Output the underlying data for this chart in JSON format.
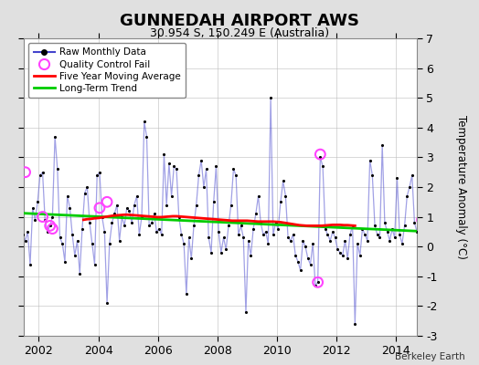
{
  "title": "GUNNEDAH AIRPORT AWS",
  "subtitle": "30.954 S, 150.249 E (Australia)",
  "ylabel": "Temperature Anomaly (°C)",
  "credit": "Berkeley Earth",
  "ylim": [
    -3,
    7
  ],
  "yticks": [
    -3,
    -2,
    -1,
    0,
    1,
    2,
    3,
    4,
    5,
    6,
    7
  ],
  "xlim": [
    2001.5,
    2014.7
  ],
  "xticks": [
    2002,
    2004,
    2006,
    2008,
    2010,
    2012,
    2014
  ],
  "background_color": "#e0e0e0",
  "plot_bg_color": "#ffffff",
  "raw_color": "#4444cc",
  "raw_line_alpha": 0.5,
  "marker_color": "#000000",
  "ma_color": "#ff0000",
  "trend_color": "#00cc00",
  "qc_fail_color": "#ff44ff",
  "raw_monthly": [
    [
      2001.042,
      1.3
    ],
    [
      2001.125,
      1.6
    ],
    [
      2001.208,
      0.8
    ],
    [
      2001.292,
      0.5
    ],
    [
      2001.375,
      -0.1
    ],
    [
      2001.458,
      0.4
    ],
    [
      2001.542,
      0.2
    ],
    [
      2001.625,
      0.5
    ],
    [
      2001.708,
      -0.6
    ],
    [
      2001.792,
      1.3
    ],
    [
      2001.875,
      0.9
    ],
    [
      2001.958,
      1.5
    ],
    [
      2002.042,
      2.4
    ],
    [
      2002.125,
      2.5
    ],
    [
      2002.208,
      0.9
    ],
    [
      2002.292,
      0.5
    ],
    [
      2002.375,
      0.7
    ],
    [
      2002.458,
      1.0
    ],
    [
      2002.542,
      3.7
    ],
    [
      2002.625,
      2.6
    ],
    [
      2002.708,
      0.3
    ],
    [
      2002.792,
      0.1
    ],
    [
      2002.875,
      -0.5
    ],
    [
      2002.958,
      1.7
    ],
    [
      2003.042,
      1.3
    ],
    [
      2003.125,
      0.4
    ],
    [
      2003.208,
      -0.3
    ],
    [
      2003.292,
      0.2
    ],
    [
      2003.375,
      -0.9
    ],
    [
      2003.458,
      0.6
    ],
    [
      2003.542,
      1.8
    ],
    [
      2003.625,
      2.0
    ],
    [
      2003.708,
      0.8
    ],
    [
      2003.792,
      0.1
    ],
    [
      2003.875,
      -0.6
    ],
    [
      2003.958,
      2.4
    ],
    [
      2004.042,
      2.5
    ],
    [
      2004.125,
      1.0
    ],
    [
      2004.208,
      0.5
    ],
    [
      2004.292,
      -1.9
    ],
    [
      2004.375,
      0.1
    ],
    [
      2004.458,
      0.8
    ],
    [
      2004.542,
      1.1
    ],
    [
      2004.625,
      1.4
    ],
    [
      2004.708,
      0.2
    ],
    [
      2004.792,
      1.0
    ],
    [
      2004.875,
      0.7
    ],
    [
      2004.958,
      1.3
    ],
    [
      2005.042,
      1.2
    ],
    [
      2005.125,
      0.8
    ],
    [
      2005.208,
      1.4
    ],
    [
      2005.292,
      1.7
    ],
    [
      2005.375,
      0.4
    ],
    [
      2005.458,
      1.0
    ],
    [
      2005.542,
      4.2
    ],
    [
      2005.625,
      3.7
    ],
    [
      2005.708,
      0.7
    ],
    [
      2005.792,
      0.8
    ],
    [
      2005.875,
      1.1
    ],
    [
      2005.958,
      0.5
    ],
    [
      2006.042,
      0.6
    ],
    [
      2006.125,
      0.4
    ],
    [
      2006.208,
      3.1
    ],
    [
      2006.292,
      1.4
    ],
    [
      2006.375,
      2.8
    ],
    [
      2006.458,
      1.7
    ],
    [
      2006.542,
      2.7
    ],
    [
      2006.625,
      2.6
    ],
    [
      2006.708,
      1.0
    ],
    [
      2006.792,
      0.4
    ],
    [
      2006.875,
      0.1
    ],
    [
      2006.958,
      -1.6
    ],
    [
      2007.042,
      0.3
    ],
    [
      2007.125,
      -0.4
    ],
    [
      2007.208,
      0.7
    ],
    [
      2007.292,
      1.4
    ],
    [
      2007.375,
      2.4
    ],
    [
      2007.458,
      2.9
    ],
    [
      2007.542,
      2.0
    ],
    [
      2007.625,
      2.6
    ],
    [
      2007.708,
      0.3
    ],
    [
      2007.792,
      -0.2
    ],
    [
      2007.875,
      1.5
    ],
    [
      2007.958,
      2.7
    ],
    [
      2008.042,
      0.5
    ],
    [
      2008.125,
      -0.2
    ],
    [
      2008.208,
      0.3
    ],
    [
      2008.292,
      -0.1
    ],
    [
      2008.375,
      0.7
    ],
    [
      2008.458,
      1.4
    ],
    [
      2008.542,
      2.6
    ],
    [
      2008.625,
      2.4
    ],
    [
      2008.708,
      0.4
    ],
    [
      2008.792,
      0.7
    ],
    [
      2008.875,
      0.3
    ],
    [
      2008.958,
      -2.2
    ],
    [
      2009.042,
      0.2
    ],
    [
      2009.125,
      -0.3
    ],
    [
      2009.208,
      0.6
    ],
    [
      2009.292,
      1.1
    ],
    [
      2009.375,
      1.7
    ],
    [
      2009.458,
      0.8
    ],
    [
      2009.542,
      0.4
    ],
    [
      2009.625,
      0.5
    ],
    [
      2009.708,
      0.1
    ],
    [
      2009.792,
      5.0
    ],
    [
      2009.875,
      0.4
    ],
    [
      2009.958,
      0.8
    ],
    [
      2010.042,
      0.6
    ],
    [
      2010.125,
      1.5
    ],
    [
      2010.208,
      2.2
    ],
    [
      2010.292,
      1.7
    ],
    [
      2010.375,
      0.3
    ],
    [
      2010.458,
      0.2
    ],
    [
      2010.542,
      0.4
    ],
    [
      2010.625,
      -0.3
    ],
    [
      2010.708,
      -0.5
    ],
    [
      2010.792,
      -0.8
    ],
    [
      2010.875,
      0.2
    ],
    [
      2010.958,
      0.0
    ],
    [
      2011.042,
      -0.4
    ],
    [
      2011.125,
      -0.6
    ],
    [
      2011.208,
      0.1
    ],
    [
      2011.292,
      -1.3
    ],
    [
      2011.375,
      -1.2
    ],
    [
      2011.458,
      3.0
    ],
    [
      2011.542,
      2.7
    ],
    [
      2011.625,
      0.6
    ],
    [
      2011.708,
      0.4
    ],
    [
      2011.792,
      0.2
    ],
    [
      2011.875,
      0.5
    ],
    [
      2011.958,
      0.3
    ],
    [
      2012.042,
      -0.1
    ],
    [
      2012.125,
      -0.2
    ],
    [
      2012.208,
      -0.3
    ],
    [
      2012.292,
      0.2
    ],
    [
      2012.375,
      -0.4
    ],
    [
      2012.458,
      0.4
    ],
    [
      2012.542,
      0.7
    ],
    [
      2012.625,
      -2.6
    ],
    [
      2012.708,
      0.1
    ],
    [
      2012.792,
      -0.3
    ],
    [
      2012.875,
      0.6
    ],
    [
      2012.958,
      0.4
    ],
    [
      2013.042,
      0.2
    ],
    [
      2013.125,
      2.9
    ],
    [
      2013.208,
      2.4
    ],
    [
      2013.292,
      0.7
    ],
    [
      2013.375,
      0.4
    ],
    [
      2013.458,
      0.3
    ],
    [
      2013.542,
      3.4
    ],
    [
      2013.625,
      0.8
    ],
    [
      2013.708,
      0.5
    ],
    [
      2013.792,
      0.2
    ],
    [
      2013.875,
      0.6
    ],
    [
      2013.958,
      0.3
    ],
    [
      2014.042,
      2.3
    ],
    [
      2014.125,
      0.4
    ],
    [
      2014.208,
      0.1
    ],
    [
      2014.292,
      0.7
    ],
    [
      2014.375,
      1.7
    ],
    [
      2014.458,
      2.0
    ],
    [
      2014.542,
      2.4
    ],
    [
      2014.625,
      0.8
    ],
    [
      2014.708,
      0.5
    ],
    [
      2014.792,
      1.1
    ],
    [
      2014.875,
      0.9
    ],
    [
      2014.958,
      0.7
    ]
  ],
  "qc_fail_points": [
    [
      2001.542,
      2.5
    ],
    [
      2002.125,
      1.0
    ],
    [
      2002.375,
      0.7
    ],
    [
      2002.458,
      0.6
    ],
    [
      2004.042,
      1.3
    ],
    [
      2004.292,
      1.5
    ],
    [
      2011.458,
      3.1
    ],
    [
      2011.375,
      -1.2
    ],
    [
      2014.875,
      0.9
    ]
  ],
  "moving_avg": [
    [
      2003.5,
      0.9
    ],
    [
      2003.625,
      0.92
    ],
    [
      2003.75,
      0.93
    ],
    [
      2003.875,
      0.95
    ],
    [
      2004.0,
      0.96
    ],
    [
      2004.125,
      0.98
    ],
    [
      2004.25,
      1.0
    ],
    [
      2004.375,
      1.02
    ],
    [
      2004.5,
      1.04
    ],
    [
      2004.625,
      1.05
    ],
    [
      2004.75,
      1.06
    ],
    [
      2004.875,
      1.07
    ],
    [
      2005.0,
      1.07
    ],
    [
      2005.125,
      1.06
    ],
    [
      2005.25,
      1.05
    ],
    [
      2005.375,
      1.04
    ],
    [
      2005.5,
      1.03
    ],
    [
      2005.625,
      1.02
    ],
    [
      2005.75,
      1.01
    ],
    [
      2005.875,
      1.0
    ],
    [
      2006.0,
      0.99
    ],
    [
      2006.125,
      0.99
    ],
    [
      2006.25,
      1.0
    ],
    [
      2006.375,
      1.01
    ],
    [
      2006.5,
      1.02
    ],
    [
      2006.625,
      1.02
    ],
    [
      2006.75,
      1.01
    ],
    [
      2006.875,
      1.0
    ],
    [
      2007.0,
      0.99
    ],
    [
      2007.125,
      0.98
    ],
    [
      2007.25,
      0.97
    ],
    [
      2007.375,
      0.96
    ],
    [
      2007.5,
      0.95
    ],
    [
      2007.625,
      0.94
    ],
    [
      2007.75,
      0.93
    ],
    [
      2007.875,
      0.92
    ],
    [
      2008.0,
      0.91
    ],
    [
      2008.125,
      0.9
    ],
    [
      2008.25,
      0.89
    ],
    [
      2008.375,
      0.88
    ],
    [
      2008.5,
      0.87
    ],
    [
      2008.625,
      0.87
    ],
    [
      2008.75,
      0.87
    ],
    [
      2008.875,
      0.87
    ],
    [
      2009.0,
      0.87
    ],
    [
      2009.125,
      0.86
    ],
    [
      2009.25,
      0.85
    ],
    [
      2009.375,
      0.84
    ],
    [
      2009.5,
      0.84
    ],
    [
      2009.625,
      0.84
    ],
    [
      2009.75,
      0.84
    ],
    [
      2009.875,
      0.84
    ],
    [
      2010.0,
      0.83
    ],
    [
      2010.125,
      0.82
    ],
    [
      2010.25,
      0.8
    ],
    [
      2010.375,
      0.78
    ],
    [
      2010.5,
      0.76
    ],
    [
      2010.625,
      0.74
    ],
    [
      2010.75,
      0.72
    ],
    [
      2010.875,
      0.71
    ],
    [
      2011.0,
      0.7
    ],
    [
      2011.125,
      0.7
    ],
    [
      2011.25,
      0.7
    ],
    [
      2011.375,
      0.7
    ],
    [
      2011.5,
      0.7
    ],
    [
      2011.625,
      0.71
    ],
    [
      2011.75,
      0.72
    ],
    [
      2011.875,
      0.73
    ],
    [
      2012.0,
      0.73
    ],
    [
      2012.125,
      0.73
    ],
    [
      2012.25,
      0.72
    ],
    [
      2012.375,
      0.72
    ],
    [
      2012.5,
      0.71
    ],
    [
      2012.625,
      0.7
    ]
  ],
  "trend_line": [
    [
      2001.5,
      1.12
    ],
    [
      2014.7,
      0.52
    ]
  ]
}
